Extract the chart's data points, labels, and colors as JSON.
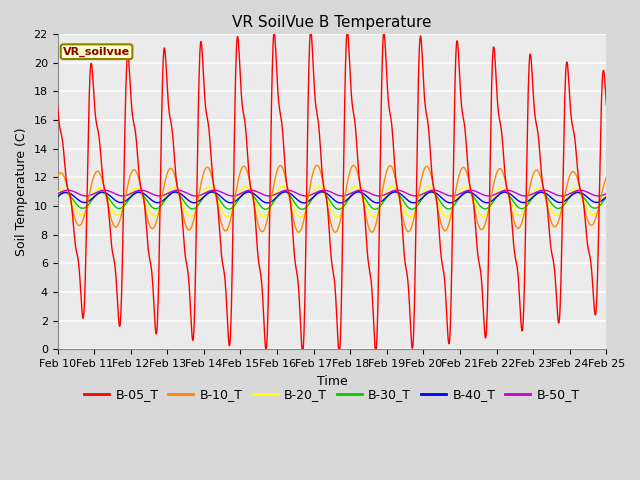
{
  "title": "VR SoilVue B Temperature",
  "xlabel": "Time",
  "ylabel": "Soil Temperature (C)",
  "ylim": [
    0,
    22
  ],
  "yticks": [
    0,
    2,
    4,
    6,
    8,
    10,
    12,
    14,
    16,
    18,
    20,
    22
  ],
  "x_labels": [
    "Feb 10",
    "Feb 11",
    "Feb 12",
    "Feb 13",
    "Feb 14",
    "Feb 15",
    "Feb 16",
    "Feb 17",
    "Feb 18",
    "Feb 19",
    "Feb 20",
    "Feb 21",
    "Feb 22",
    "Feb 23",
    "Feb 24",
    "Feb 25"
  ],
  "legend_label": "VR_soilvue",
  "series_labels": [
    "B-05_T",
    "B-10_T",
    "B-20_T",
    "B-30_T",
    "B-40_T",
    "B-50_T"
  ],
  "series_colors": [
    "#ff0000",
    "#ff8800",
    "#ffff00",
    "#00cc00",
    "#0000ff",
    "#cc00cc"
  ],
  "background_color": "#d8d8d8",
  "plot_bg_color": "#ebebeb",
  "grid_color": "#ffffff",
  "title_fontsize": 11,
  "axis_fontsize": 9,
  "tick_fontsize": 8,
  "legend_fontsize": 9,
  "days": 15
}
